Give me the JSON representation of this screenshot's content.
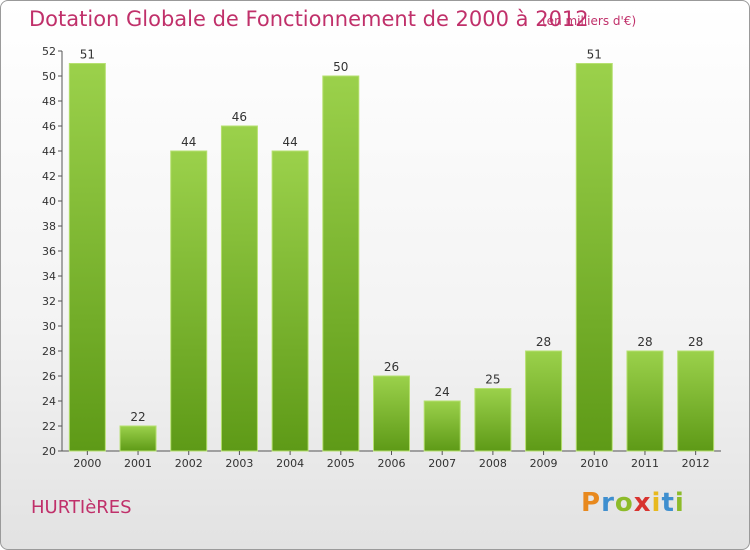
{
  "chart_data": {
    "type": "bar",
    "title": "Dotation Globale de Fonctionnement de 2000 à 2012",
    "subtitle": "(en milliers d'€)",
    "categories": [
      "2000",
      "2001",
      "2002",
      "2003",
      "2004",
      "2005",
      "2006",
      "2007",
      "2008",
      "2009",
      "2010",
      "2011",
      "2012"
    ],
    "values": [
      51,
      22,
      44,
      46,
      44,
      50,
      26,
      24,
      25,
      28,
      51,
      28,
      28
    ],
    "ylim": [
      20,
      52
    ],
    "yticks": [
      20,
      22,
      24,
      26,
      28,
      30,
      32,
      34,
      36,
      38,
      40,
      42,
      44,
      46,
      48,
      50,
      52
    ],
    "grid": false,
    "xlabel": "",
    "ylabel": "",
    "colors": {
      "bar_light": "#9bd14b",
      "bar_dark": "#5e9a17",
      "bar_edge": "#b6e070",
      "title": "#c0306a"
    }
  },
  "commune": "HURTIèRES",
  "logo": {
    "letters": [
      "P",
      "r",
      "o",
      "x",
      "i",
      "t",
      "i"
    ],
    "colors": [
      "#e8891e",
      "#3f8fcf",
      "#8dbb2a",
      "#d8332f",
      "#e8b91e",
      "#3f8fcf",
      "#8dbb2a"
    ]
  }
}
